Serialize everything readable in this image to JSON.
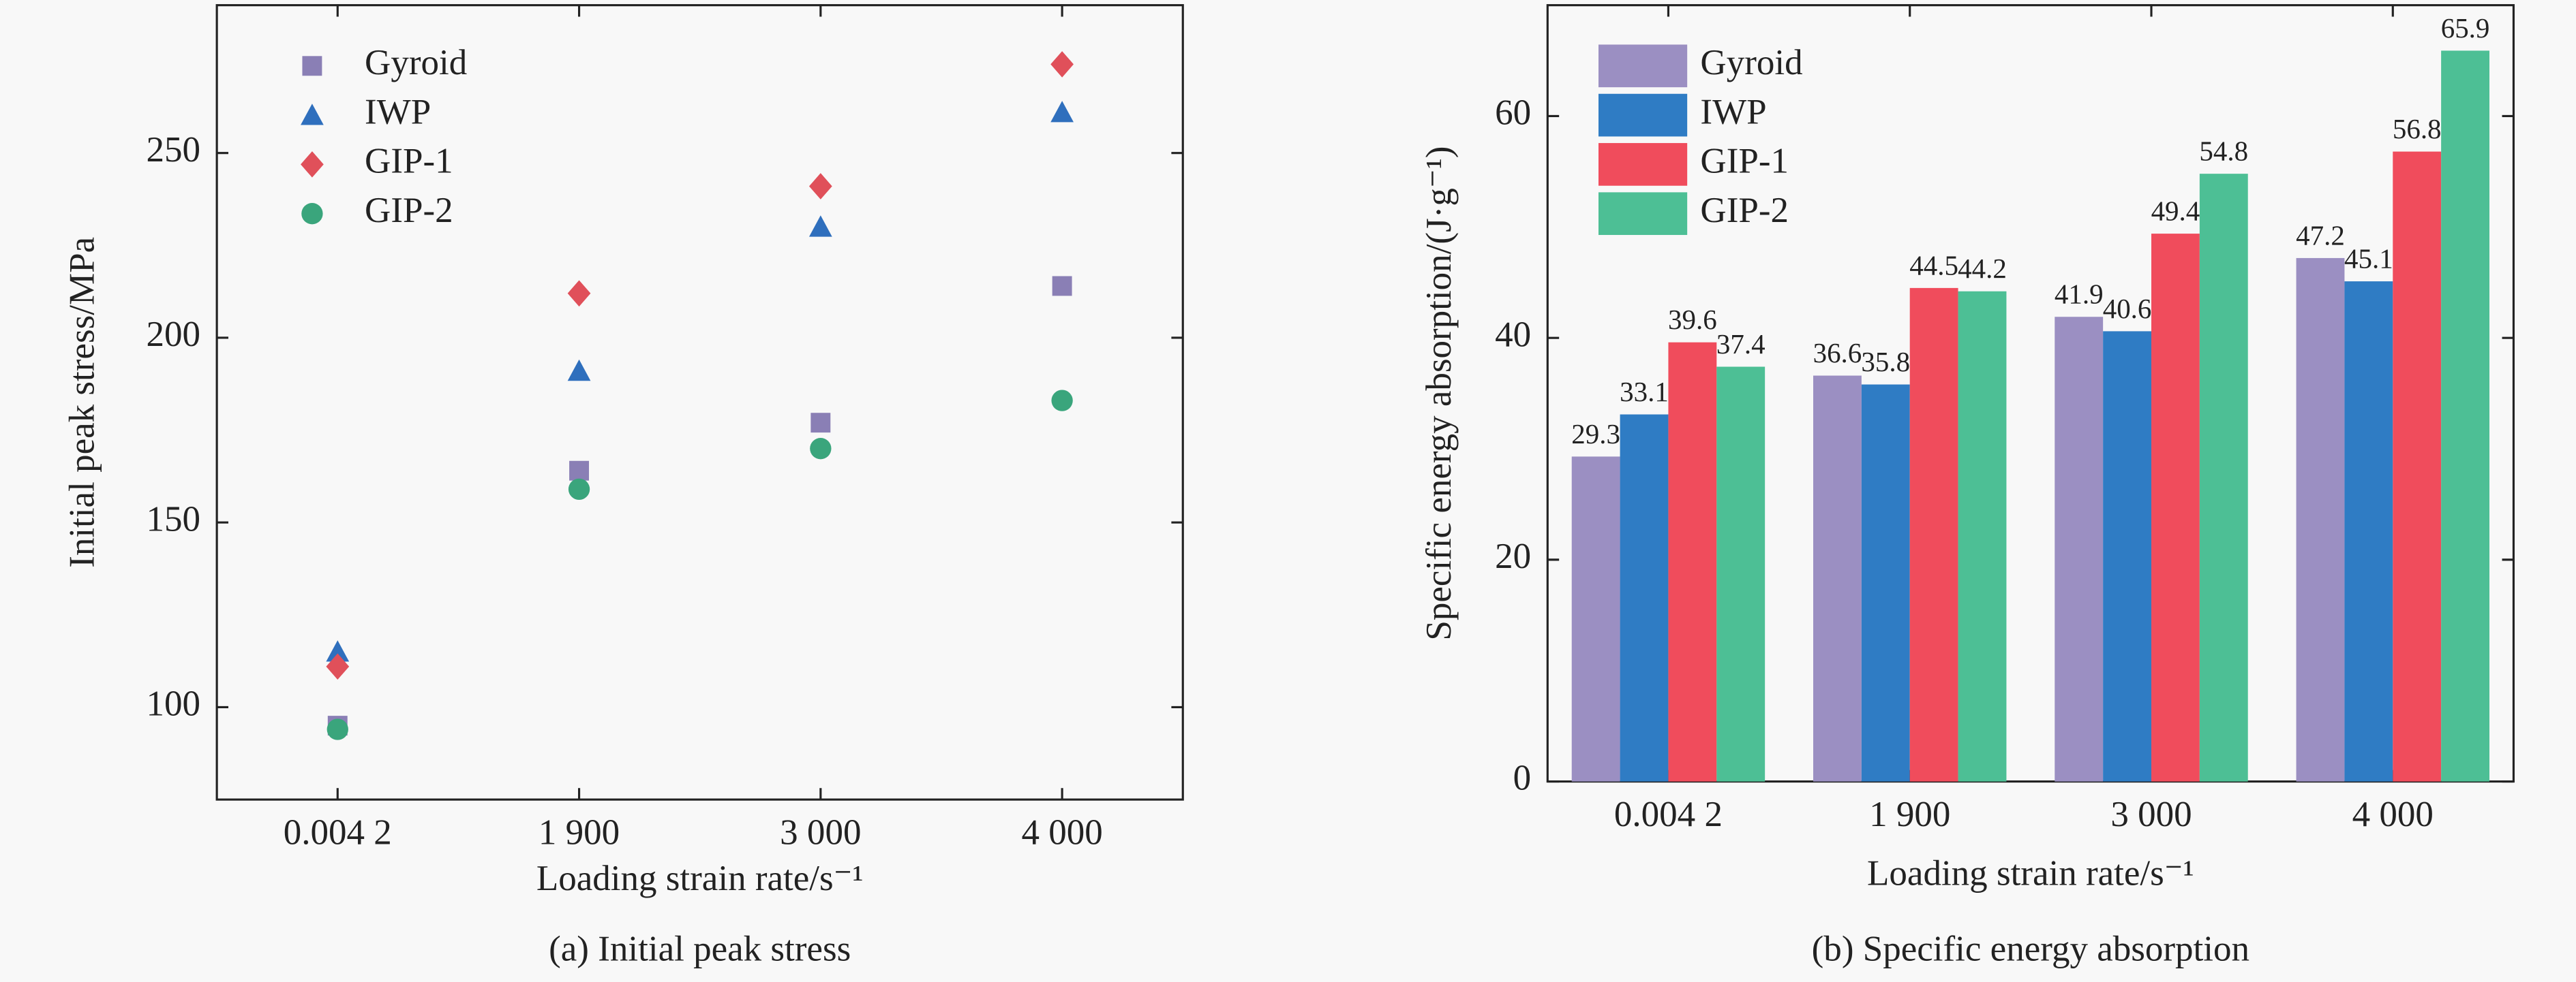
{
  "chart_data": [
    {
      "type": "scatter",
      "xlabel": "Loading strain rate/s⁻¹",
      "ylabel": "Initial peak stress/MPa",
      "caption": "(a) Initial peak stress",
      "categories": [
        "0.004 2",
        "1 900",
        "3 000",
        "4 000"
      ],
      "series": [
        {
          "name": "Gyroid",
          "color": "#8a7fb5",
          "marker": "square",
          "values": [
            95,
            164,
            177,
            214
          ]
        },
        {
          "name": "IWP",
          "color": "#2f6fbd",
          "marker": "triangle",
          "values": [
            115,
            191,
            230,
            261
          ]
        },
        {
          "name": "GIP-1",
          "color": "#e0505a",
          "marker": "diamond",
          "values": [
            111,
            212,
            241,
            274
          ]
        },
        {
          "name": "GIP-2",
          "color": "#3aa57c",
          "marker": "circle",
          "values": [
            94,
            159,
            170,
            183
          ]
        }
      ],
      "ylim": [
        75,
        290
      ],
      "yticks": [
        100,
        150,
        200,
        250
      ],
      "legend": "upper-left"
    },
    {
      "type": "bar",
      "xlabel": "Loading strain rate/s⁻¹",
      "ylabel": "Specific energy absorption/(J·g⁻¹)",
      "caption": "(b) Specific energy absorption",
      "categories": [
        "0.004 2",
        "1 900",
        "3 000",
        "4 000"
      ],
      "series": [
        {
          "name": "Gyroid",
          "color": "#9b8fc2",
          "values": [
            29.3,
            36.6,
            41.9,
            47.2
          ]
        },
        {
          "name": "IWP",
          "color": "#2f7cc4",
          "values": [
            33.1,
            35.8,
            40.6,
            45.1
          ]
        },
        {
          "name": "GIP-1",
          "color": "#f04c5c",
          "values": [
            39.6,
            44.5,
            49.4,
            56.8
          ]
        },
        {
          "name": "GIP-2",
          "color": "#4dbf95",
          "values": [
            37.4,
            44.2,
            54.8,
            65.9
          ]
        }
      ],
      "ylim": [
        0,
        70
      ],
      "yticks": [
        0,
        20,
        40,
        60
      ],
      "legend": "upper-left"
    }
  ]
}
